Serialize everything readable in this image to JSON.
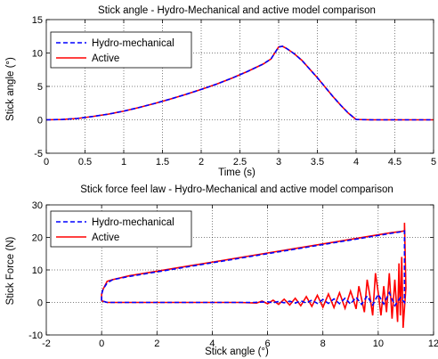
{
  "chart_data": [
    {
      "type": "line",
      "title": "Stick angle - Hydro-Mechanical and active model comparison",
      "xlabel": "Time (s)",
      "ylabel": "Stick angle (°)",
      "xlim": [
        0,
        5
      ],
      "ylim": [
        -5,
        15
      ],
      "xticks": [
        "0",
        "0.5",
        "1",
        "1.5",
        "2",
        "2.5",
        "3",
        "3.5",
        "4",
        "4.5",
        "5"
      ],
      "yticks": [
        "-5",
        "0",
        "5",
        "10",
        "15"
      ],
      "grid": true,
      "legend": "top-left",
      "series": [
        {
          "name": "Hydro-mechanical",
          "color": "#0000ff",
          "dash": "dashed",
          "x": [
            0,
            0.2,
            0.4,
            0.6,
            0.8,
            1.0,
            1.2,
            1.4,
            1.6,
            1.8,
            2.0,
            2.2,
            2.4,
            2.6,
            2.8,
            2.9,
            3.0,
            3.05,
            3.1,
            3.2,
            3.3,
            3.4,
            3.5,
            3.6,
            3.7,
            3.8,
            3.9,
            4.0,
            4.2,
            4.5,
            5.0
          ],
          "y": [
            0,
            0.05,
            0.2,
            0.5,
            0.85,
            1.3,
            1.85,
            2.45,
            3.1,
            3.8,
            4.55,
            5.35,
            6.25,
            7.25,
            8.35,
            9.1,
            10.9,
            11.0,
            10.7,
            9.9,
            8.9,
            7.6,
            6.3,
            4.9,
            3.5,
            2.2,
            1.0,
            0.05,
            0,
            0,
            0
          ]
        },
        {
          "name": "Active",
          "color": "#ff0000",
          "dash": "solid",
          "x": [
            0,
            0.2,
            0.4,
            0.6,
            0.8,
            1.0,
            1.2,
            1.4,
            1.6,
            1.8,
            2.0,
            2.2,
            2.4,
            2.6,
            2.8,
            2.9,
            3.0,
            3.05,
            3.1,
            3.2,
            3.3,
            3.4,
            3.5,
            3.6,
            3.7,
            3.8,
            3.9,
            4.0,
            4.2,
            4.5,
            5.0
          ],
          "y": [
            0,
            0.05,
            0.2,
            0.5,
            0.85,
            1.3,
            1.85,
            2.45,
            3.1,
            3.8,
            4.55,
            5.35,
            6.25,
            7.25,
            8.35,
            9.1,
            10.9,
            11.0,
            10.7,
            9.9,
            8.9,
            7.6,
            6.3,
            4.9,
            3.5,
            2.2,
            1.0,
            0.05,
            0,
            0,
            0
          ]
        }
      ]
    },
    {
      "type": "line",
      "title": "Stick force feel law - Hydro-Mechanical and active model comparison",
      "xlabel": "Stick angle (°)",
      "ylabel": "Stick Force (N)",
      "xlim": [
        -2,
        12
      ],
      "ylim": [
        -10,
        30
      ],
      "xticks": [
        "-2",
        "0",
        "2",
        "4",
        "6",
        "8",
        "10",
        "12"
      ],
      "yticks": [
        "-10",
        "0",
        "10",
        "20",
        "30"
      ],
      "grid": true,
      "legend": "top-left",
      "series": [
        {
          "name": "Hydro-mechanical",
          "color": "#0000ff",
          "dash": "dashed",
          "x": [
            0,
            0,
            0.05,
            0.2,
            0.4,
            1,
            2,
            3,
            4,
            5,
            6,
            7,
            8,
            9,
            10,
            10.5,
            10.8,
            10.95,
            10.95,
            10.8,
            10.6,
            10.4,
            10.2,
            10.0,
            9.8,
            9.6,
            9.4,
            9.2,
            9.0,
            8.8,
            8.6,
            8.4,
            8.2,
            8.0,
            7.8,
            7.6,
            7.4,
            7.2,
            7.0,
            6.8,
            6.6,
            6.4,
            6.2,
            6.0,
            5.5,
            5.0,
            4.0,
            3.0,
            2.0,
            1.0,
            0.5,
            0.2,
            0
          ],
          "y": [
            0.5,
            2.5,
            4,
            6,
            7,
            8,
            9.4,
            10.8,
            12.2,
            13.6,
            15,
            16.4,
            17.8,
            19.2,
            20.6,
            21.3,
            21.7,
            22,
            0,
            1.5,
            -1,
            3,
            -0.5,
            2.5,
            -0.8,
            2,
            -0.6,
            1.6,
            -0.5,
            1.3,
            -0.4,
            1.1,
            -0.3,
            0.9,
            -0.3,
            0.7,
            -0.2,
            0.5,
            -0.2,
            0.4,
            -0.1,
            0.3,
            -0.1,
            0.2,
            0,
            0,
            0,
            0,
            0,
            0,
            0,
            0,
            0.5
          ]
        },
        {
          "name": "Active",
          "color": "#ff0000",
          "dash": "solid",
          "x": [
            0,
            0,
            0.05,
            0.2,
            0.4,
            1,
            2,
            3,
            4,
            5,
            6,
            7,
            8,
            9,
            10,
            10.5,
            10.8,
            10.95,
            10.95,
            11.0,
            10.9,
            10.85,
            10.8,
            10.75,
            10.7,
            10.6,
            10.5,
            10.4,
            10.3,
            10.2,
            10.1,
            10.0,
            9.9,
            9.8,
            9.7,
            9.6,
            9.5,
            9.4,
            9.3,
            9.2,
            9.1,
            9.0,
            8.8,
            8.6,
            8.4,
            8.2,
            8.0,
            7.8,
            7.6,
            7.4,
            7.2,
            7.0,
            6.8,
            6.6,
            6.4,
            6.2,
            6.0,
            5.8,
            5.6,
            5.0,
            4.0,
            3.0,
            2.0,
            1.0,
            0.5,
            0.2,
            0
          ],
          "y": [
            0.5,
            2.5,
            4,
            6.5,
            7,
            8.2,
            9.6,
            11,
            12.4,
            13.8,
            15.2,
            16.6,
            18,
            19.4,
            20.8,
            21.5,
            21.8,
            22,
            24.5,
            4.5,
            -7.8,
            14,
            -4,
            12,
            -6,
            7,
            -5,
            9,
            -3,
            5,
            -4,
            3,
            9,
            -4,
            2,
            7,
            -3,
            1,
            5,
            -2,
            1,
            3.5,
            -1.8,
            3,
            -1.6,
            2.6,
            -1.5,
            2.2,
            -1.2,
            1.8,
            -1,
            1.3,
            -0.8,
            1,
            -0.6,
            0.7,
            -0.4,
            0.4,
            -0.2,
            0,
            0,
            0,
            0,
            0,
            0,
            0,
            0.5
          ]
        }
      ]
    }
  ]
}
